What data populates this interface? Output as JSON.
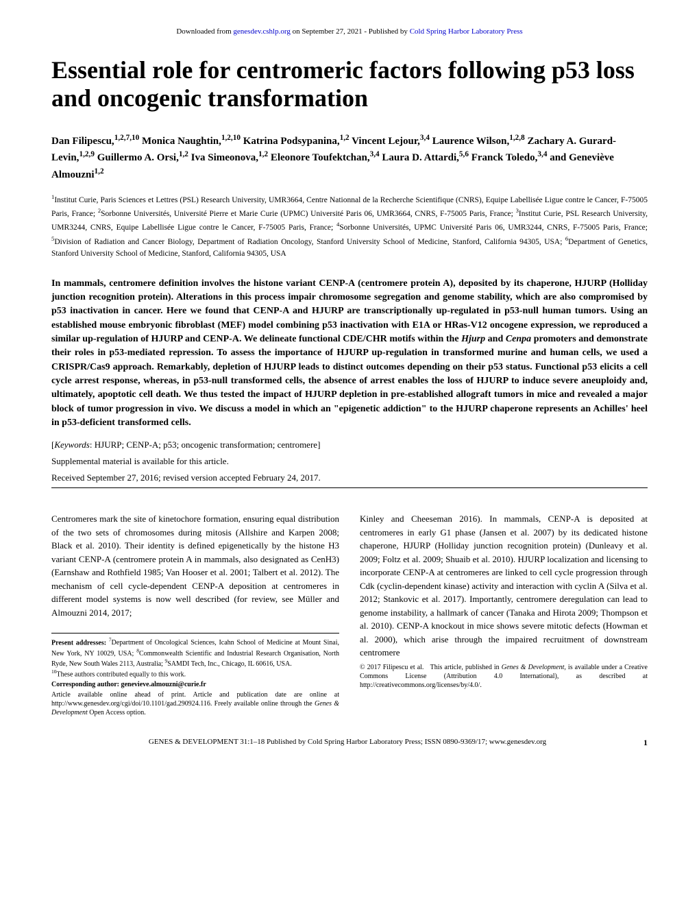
{
  "header": {
    "prefix": "Downloaded from ",
    "link1": "genesdev.cshlp.org",
    "middle": " on September 27, 2021 - Published by ",
    "link2": "Cold Spring Harbor Laboratory Press"
  },
  "title": "Essential role for centromeric factors following p53 loss and oncogenic transformation",
  "authors": "Dan Filipescu,<sup>1,2,7,10</sup> Monica Naughtin,<sup>1,2,10</sup> Katrina Podsypanina,<sup>1,2</sup> Vincent Lejour,<sup>3,4</sup> Laurence Wilson,<sup>1,2,8</sup> Zachary A. Gurard-Levin,<sup>1,2,9</sup> Guillermo A. Orsi,<sup>1,2</sup> Iva Simeonova,<sup>1,2</sup> Eleonore Toufektchan,<sup>3,4</sup> Laura D. Attardi,<sup>5,6</sup> Franck Toledo,<sup>3,4</sup> and Geneviève Almouzni<sup>1,2</sup>",
  "affiliations": "<sup>1</sup>Institut Curie, Paris Sciences et Lettres (PSL) Research University, UMR3664, Centre Nationnal de la Recherche Scientifique (CNRS), Equipe Labellisée Ligue contre le Cancer, F-75005 Paris, France; <sup>2</sup>Sorbonne Universités, Université Pierre et Marie Curie (UPMC) Université Paris 06, UMR3664, CNRS, F-75005 Paris, France; <sup>3</sup>Institut Curie, PSL Research University, UMR3244, CNRS, Equipe Labellisée Ligue contre le Cancer, F-75005 Paris, France; <sup>4</sup>Sorbonne Universités, UPMC Université Paris 06, UMR3244, CNRS, F-75005 Paris, France; <sup>5</sup>Division of Radiation and Cancer Biology, Department of Radiation Oncology, Stanford University School of Medicine, Stanford, California 94305, USA; <sup>6</sup>Department of Genetics, Stanford University School of Medicine, Stanford, California 94305, USA",
  "abstract": "In mammals, centromere definition involves the histone variant CENP-A (centromere protein A), deposited by its chaperone, HJURP (Holliday junction recognition protein). Alterations in this process impair chromosome segregation and genome stability, which are also compromised by p53 inactivation in cancer. Here we found that CENP-A and HJURP are transcriptionally up-regulated in p53-null human tumors. Using an established mouse embryonic fibroblast (MEF) model combining p53 inactivation with E1A or HRas-V12 oncogene expression, we reproduced a similar up-regulation of HJURP and CENP-A. We delineate functional CDE/CHR motifs within the <i>Hjurp</i> and <i>Cenpa</i> promoters and demonstrate their roles in p53-mediated repression. To assess the importance of HJURP up-regulation in transformed murine and human cells, we used a CRISPR/Cas9 approach. Remarkably, depletion of HJURP leads to distinct outcomes depending on their p53 status. Functional p53 elicits a cell cycle arrest response, whereas, in p53-null transformed cells, the absence of arrest enables the loss of HJURP to induce severe aneuploidy and, ultimately, apoptotic cell death. We thus tested the impact of HJURP depletion in pre-established allograft tumors in mice and revealed a major block of tumor progression in vivo. We discuss a model in which an \"epigenetic addiction\" to the HJURP chaperone represents an Achilles' heel in p53-deficient transformed cells.",
  "keywords_label": "Keywords",
  "keywords": "HJURP; CENP-A; p53; oncogenic transformation; centromere",
  "supplemental": "Supplemental material is available for this article.",
  "received": "Received September 27, 2016; revised version accepted February 24, 2017.",
  "column1": "Centromeres mark the site of kinetochore formation, ensuring equal distribution of the two sets of chromosomes during mitosis (Allshire and Karpen 2008; Black et al. 2010). Their identity is defined epigenetically by the histone H3 variant CENP-A (centromere protein A in mammals, also designated as CenH3) (Earnshaw and Rothfield 1985; Van Hooser et al. 2001; Talbert et al. 2012). The mechanism of cell cycle-dependent CENP-A deposition at centromeres in different model systems is now well described (for review, see Müller and Almouzni 2014, 2017;",
  "column2": "Kinley and Cheeseman 2016). In mammals, CENP-A is deposited at centromeres in early G1 phase (Jansen et al. 2007) by its dedicated histone chaperone, HJURP (Holliday junction recognition protein) (Dunleavy et al. 2009; Foltz et al. 2009; Shuaib et al. 2010). HJURP localization and licensing to incorporate CENP-A at centromeres are linked to cell cycle progression through Cdk (cyclin-dependent kinase) activity and interaction with cyclin A (Silva et al. 2012; Stankovic et al. 2017). Importantly, centromere deregulation can lead to genome instability, a hallmark of cancer (Tanaka and Hirota 2009; Thompson et al. 2010). CENP-A knockout in mice shows severe mitotic defects (Howman et al. 2000), which arise through the impaired recruitment of downstream centromere",
  "footnotes": {
    "label": "Present addresses: ",
    "text": "<sup>7</sup>Department of Oncological Sciences, Icahn School of Medicine at Mount Sinai, New York, NY 10029, USA; <sup>8</sup>Commonwealth Scientific and Industrial Research Organisation, North Ryde, New South Wales 2113, Australia; <sup>9</sup>SAMDI Tech, Inc., Chicago, IL 60616, USA.",
    "equal": "<sup>10</sup>These authors contributed equally to this work.",
    "corresponding": "Corresponding author: genevieve.almouzni@curie.fr",
    "article": "Article available online ahead of print. Article and publication date are online at http://www.genesdev.org/cgi/doi/10.1101/gad.290924.116. Freely available online through the <i>Genes & Development</i> Open Access option."
  },
  "copyright": "© 2017 Filipescu et al.&nbsp;&nbsp;&nbsp;This article, published in <i>Genes & Development</i>, is available under a Creative Commons License (Attribution 4.0 International), as described at http://creativecommons.org/licenses/by/4.0/.",
  "footer": {
    "text": "GENES & DEVELOPMENT 31:1–18 Published by Cold Spring Harbor Laboratory Press; ISSN 0890-9369/17; www.genesdev.org",
    "page": "1"
  }
}
